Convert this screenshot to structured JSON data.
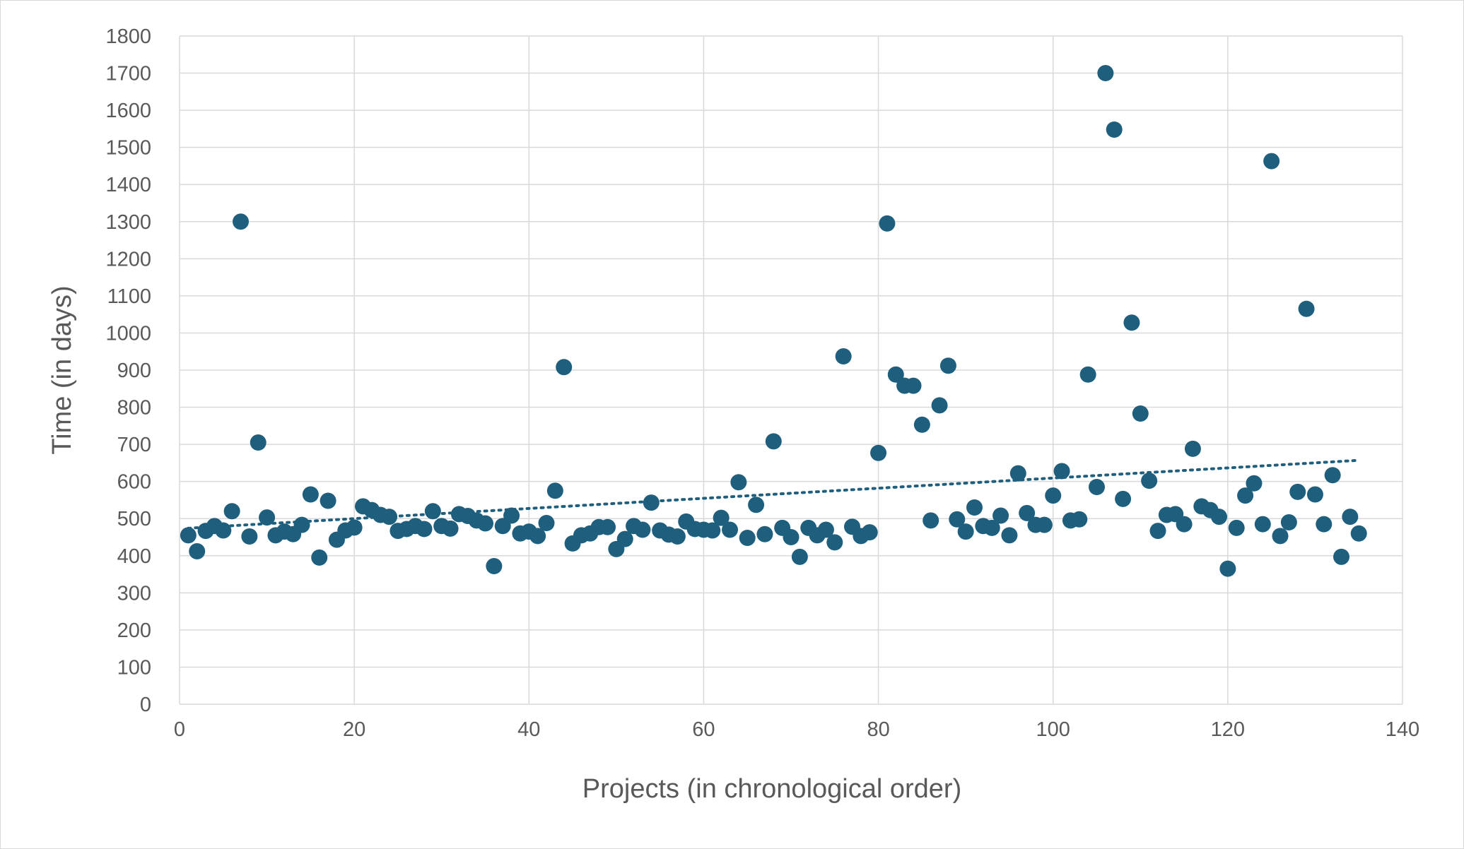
{
  "chart_data": {
    "type": "scatter",
    "title": "",
    "xlabel": "Projects (in chronological order)",
    "ylabel": "Time (in days)",
    "xlim": [
      0,
      140
    ],
    "ylim": [
      0,
      1800
    ],
    "x_ticks": [
      0,
      20,
      40,
      60,
      80,
      100,
      120,
      140
    ],
    "y_ticks": [
      0,
      100,
      200,
      300,
      400,
      500,
      600,
      700,
      800,
      900,
      1000,
      1100,
      1200,
      1300,
      1400,
      1500,
      1600,
      1700,
      1800
    ],
    "grid": true,
    "legend": "none",
    "marker_color": "#1f5f7e",
    "trendline": {
      "type": "linear",
      "style": "dotted",
      "x": [
        1,
        135
      ],
      "y": [
        474,
        657
      ]
    },
    "points": [
      {
        "x": 1,
        "y": 455
      },
      {
        "x": 2,
        "y": 412
      },
      {
        "x": 3,
        "y": 467
      },
      {
        "x": 4,
        "y": 480
      },
      {
        "x": 5,
        "y": 468
      },
      {
        "x": 6,
        "y": 520
      },
      {
        "x": 7,
        "y": 1300
      },
      {
        "x": 8,
        "y": 452
      },
      {
        "x": 9,
        "y": 705
      },
      {
        "x": 10,
        "y": 503
      },
      {
        "x": 11,
        "y": 455
      },
      {
        "x": 12,
        "y": 465
      },
      {
        "x": 13,
        "y": 458
      },
      {
        "x": 14,
        "y": 483
      },
      {
        "x": 15,
        "y": 565
      },
      {
        "x": 16,
        "y": 395
      },
      {
        "x": 17,
        "y": 548
      },
      {
        "x": 18,
        "y": 443
      },
      {
        "x": 19,
        "y": 468
      },
      {
        "x": 20,
        "y": 476
      },
      {
        "x": 21,
        "y": 533
      },
      {
        "x": 22,
        "y": 523
      },
      {
        "x": 23,
        "y": 510
      },
      {
        "x": 24,
        "y": 505
      },
      {
        "x": 25,
        "y": 467
      },
      {
        "x": 26,
        "y": 472
      },
      {
        "x": 27,
        "y": 480
      },
      {
        "x": 28,
        "y": 472
      },
      {
        "x": 29,
        "y": 520
      },
      {
        "x": 30,
        "y": 480
      },
      {
        "x": 31,
        "y": 473
      },
      {
        "x": 32,
        "y": 512
      },
      {
        "x": 33,
        "y": 507
      },
      {
        "x": 34,
        "y": 495
      },
      {
        "x": 35,
        "y": 487
      },
      {
        "x": 36,
        "y": 372
      },
      {
        "x": 37,
        "y": 480
      },
      {
        "x": 38,
        "y": 508
      },
      {
        "x": 39,
        "y": 460
      },
      {
        "x": 40,
        "y": 465
      },
      {
        "x": 41,
        "y": 453
      },
      {
        "x": 42,
        "y": 488
      },
      {
        "x": 43,
        "y": 575
      },
      {
        "x": 44,
        "y": 908
      },
      {
        "x": 45,
        "y": 433
      },
      {
        "x": 46,
        "y": 455
      },
      {
        "x": 47,
        "y": 460
      },
      {
        "x": 48,
        "y": 477
      },
      {
        "x": 49,
        "y": 477
      },
      {
        "x": 50,
        "y": 418
      },
      {
        "x": 51,
        "y": 445
      },
      {
        "x": 52,
        "y": 480
      },
      {
        "x": 53,
        "y": 470
      },
      {
        "x": 54,
        "y": 543
      },
      {
        "x": 55,
        "y": 468
      },
      {
        "x": 56,
        "y": 457
      },
      {
        "x": 57,
        "y": 452
      },
      {
        "x": 58,
        "y": 492
      },
      {
        "x": 59,
        "y": 472
      },
      {
        "x": 60,
        "y": 470
      },
      {
        "x": 61,
        "y": 468
      },
      {
        "x": 62,
        "y": 502
      },
      {
        "x": 63,
        "y": 470
      },
      {
        "x": 64,
        "y": 598
      },
      {
        "x": 65,
        "y": 448
      },
      {
        "x": 66,
        "y": 537
      },
      {
        "x": 67,
        "y": 458
      },
      {
        "x": 68,
        "y": 708
      },
      {
        "x": 69,
        "y": 475
      },
      {
        "x": 70,
        "y": 450
      },
      {
        "x": 71,
        "y": 397
      },
      {
        "x": 72,
        "y": 475
      },
      {
        "x": 73,
        "y": 455
      },
      {
        "x": 74,
        "y": 470
      },
      {
        "x": 75,
        "y": 436
      },
      {
        "x": 76,
        "y": 937
      },
      {
        "x": 77,
        "y": 478
      },
      {
        "x": 78,
        "y": 453
      },
      {
        "x": 79,
        "y": 463
      },
      {
        "x": 80,
        "y": 677
      },
      {
        "x": 81,
        "y": 1295
      },
      {
        "x": 82,
        "y": 888
      },
      {
        "x": 83,
        "y": 858
      },
      {
        "x": 84,
        "y": 858
      },
      {
        "x": 85,
        "y": 753
      },
      {
        "x": 86,
        "y": 495
      },
      {
        "x": 87,
        "y": 805
      },
      {
        "x": 88,
        "y": 912
      },
      {
        "x": 89,
        "y": 498
      },
      {
        "x": 90,
        "y": 465
      },
      {
        "x": 91,
        "y": 530
      },
      {
        "x": 92,
        "y": 480
      },
      {
        "x": 93,
        "y": 475
      },
      {
        "x": 94,
        "y": 508
      },
      {
        "x": 95,
        "y": 455
      },
      {
        "x": 96,
        "y": 622
      },
      {
        "x": 97,
        "y": 515
      },
      {
        "x": 98,
        "y": 483
      },
      {
        "x": 99,
        "y": 483
      },
      {
        "x": 100,
        "y": 562
      },
      {
        "x": 101,
        "y": 628
      },
      {
        "x": 102,
        "y": 495
      },
      {
        "x": 103,
        "y": 498
      },
      {
        "x": 104,
        "y": 888
      },
      {
        "x": 105,
        "y": 585
      },
      {
        "x": 106,
        "y": 1700
      },
      {
        "x": 107,
        "y": 1548
      },
      {
        "x": 108,
        "y": 553
      },
      {
        "x": 109,
        "y": 1028
      },
      {
        "x": 110,
        "y": 783
      },
      {
        "x": 111,
        "y": 602
      },
      {
        "x": 112,
        "y": 467
      },
      {
        "x": 113,
        "y": 510
      },
      {
        "x": 114,
        "y": 512
      },
      {
        "x": 115,
        "y": 485
      },
      {
        "x": 116,
        "y": 688
      },
      {
        "x": 117,
        "y": 533
      },
      {
        "x": 118,
        "y": 523
      },
      {
        "x": 119,
        "y": 505
      },
      {
        "x": 120,
        "y": 365
      },
      {
        "x": 121,
        "y": 475
      },
      {
        "x": 122,
        "y": 562
      },
      {
        "x": 123,
        "y": 595
      },
      {
        "x": 124,
        "y": 485
      },
      {
        "x": 125,
        "y": 1463
      },
      {
        "x": 126,
        "y": 453
      },
      {
        "x": 127,
        "y": 490
      },
      {
        "x": 128,
        "y": 572
      },
      {
        "x": 129,
        "y": 1065
      },
      {
        "x": 130,
        "y": 565
      },
      {
        "x": 131,
        "y": 485
      },
      {
        "x": 132,
        "y": 617
      },
      {
        "x": 133,
        "y": 397
      },
      {
        "x": 134,
        "y": 505
      },
      {
        "x": 135,
        "y": 460
      }
    ]
  }
}
